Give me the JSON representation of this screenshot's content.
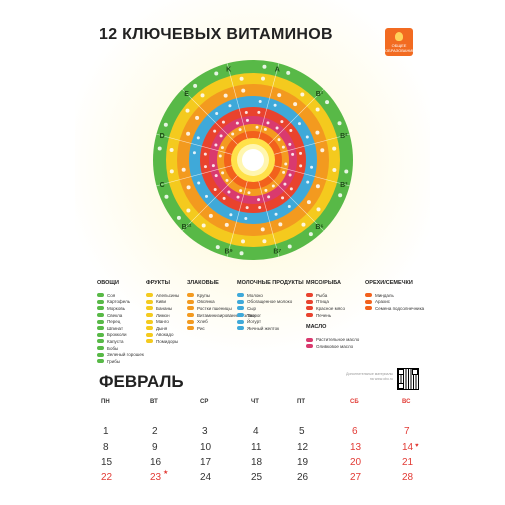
{
  "title": "12 КЛЮЧЕВЫХ ВИТАМИНОВ",
  "logo": {
    "text": "ОБЩЕЕ ОБРАЗОВАНИЕ",
    "color": "#f26b21"
  },
  "vitamins": [
    "A",
    "B¹",
    "B²",
    "B³",
    "B⁶",
    "B⁷",
    "B⁹",
    "B¹²",
    "C",
    "D",
    "E",
    "K"
  ],
  "ring_colors": [
    "#58b947",
    "#f4ca1e",
    "#f39a1f",
    "#3fa9d9",
    "#e9432d",
    "#d93a6e",
    "#f49b20",
    "#f2611c"
  ],
  "legend": [
    {
      "header": "ОВОЩИ",
      "color": "#58b947",
      "items": [
        "Соя",
        "Картофель",
        "Морковь",
        "Свекла",
        "Перец",
        "Шпинат",
        "Брокколи",
        "Капуста",
        "Бобы",
        "Зеленый горошек",
        "Грибы"
      ]
    },
    {
      "header": "ФРУКТЫ",
      "color": "#f4ca1e",
      "items": [
        "Апельсины",
        "Киви",
        "Бананы",
        "Лимон",
        "Манго",
        "Дыня",
        "Авокадо",
        "Помидоры"
      ]
    },
    {
      "header": "ЗЛАКОВЫЕ",
      "color": "#f39a1f",
      "items": [
        "Крупы",
        "Овсянка",
        "Ростки пшеницы",
        "Витаминизированные злаки",
        "Хлеб",
        "Рис"
      ]
    },
    {
      "header": "МОЛОЧНЫЕ ПРОДУКТЫ",
      "color": "#3fa9d9",
      "items": [
        "Молоко",
        "Обогащенное молоко",
        "Сыр",
        "Творог",
        "Йогурт",
        "Яичный желток"
      ]
    },
    {
      "header": "МЯСО/РЫБА",
      "color": "#e9432d",
      "items": [
        "Рыба",
        "Птица",
        "Красное мясо",
        "Печень"
      ]
    },
    {
      "header": "МАСЛО",
      "color": "#d93a6e",
      "items": [
        "Растительное масло",
        "Оливковое масло"
      ]
    },
    {
      "header": "ОРЕХИ/СЕМЕЧКИ",
      "color": "#f2611c",
      "items": [
        "Миндаль",
        "Арахис",
        "Семена подсолнечника"
      ]
    }
  ],
  "calendar": {
    "month": "ФЕВРАЛЬ",
    "note": "Дополнительные материалы на www.obo.ru",
    "weekdays": [
      "ПН",
      "ВТ",
      "СР",
      "ЧТ",
      "ПТ",
      "СБ",
      "ВС"
    ],
    "weeks": [
      [
        "",
        "",
        "",
        "",
        "",
        "",
        ""
      ],
      [
        "1",
        "2",
        "3",
        "4",
        "5",
        "6",
        "7"
      ],
      [
        "8",
        "9",
        "10",
        "11",
        "12",
        "13",
        "14"
      ],
      [
        "15",
        "16",
        "17",
        "18",
        "19",
        "20",
        "21"
      ],
      [
        "22",
        "23",
        "24",
        "25",
        "26",
        "27",
        "28"
      ]
    ],
    "holidays": [
      "22",
      "23"
    ],
    "heart_day": "14",
    "star_day": "23"
  },
  "colors": {
    "accent_red": "#e23b35",
    "text": "#333333"
  }
}
